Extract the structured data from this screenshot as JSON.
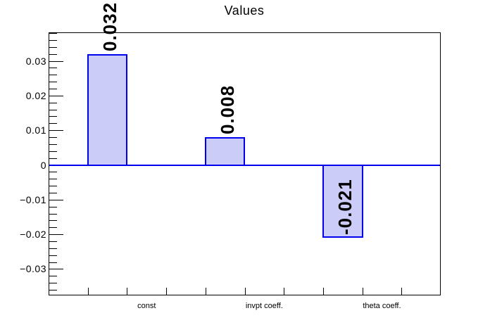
{
  "page": {
    "background": "#ffffff"
  },
  "chart_data": {
    "type": "bar",
    "title": "Values",
    "categories": [
      "const",
      "invpt coeff.",
      "theta coeff."
    ],
    "values": [
      0.032,
      0.008,
      -0.021
    ],
    "bar_labels": [
      "0.032",
      "0.008",
      "-0.021"
    ],
    "y_tick_labels": [
      "0.03",
      "0.02",
      "0.01",
      "0",
      "−0.01",
      "−0.02",
      "−0.03"
    ],
    "y_tick_values": [
      0.03,
      0.02,
      0.01,
      0,
      -0.01,
      -0.02,
      -0.03
    ],
    "ylim": [
      -0.0378,
      0.0386
    ],
    "xlabel": "",
    "ylabel": "",
    "grid": false,
    "legend": false,
    "bar_fill_color": "#ccccf8",
    "bar_border_color": "#0000f0",
    "zero_line_color": "#0000f0",
    "frame_color": "#000000"
  }
}
